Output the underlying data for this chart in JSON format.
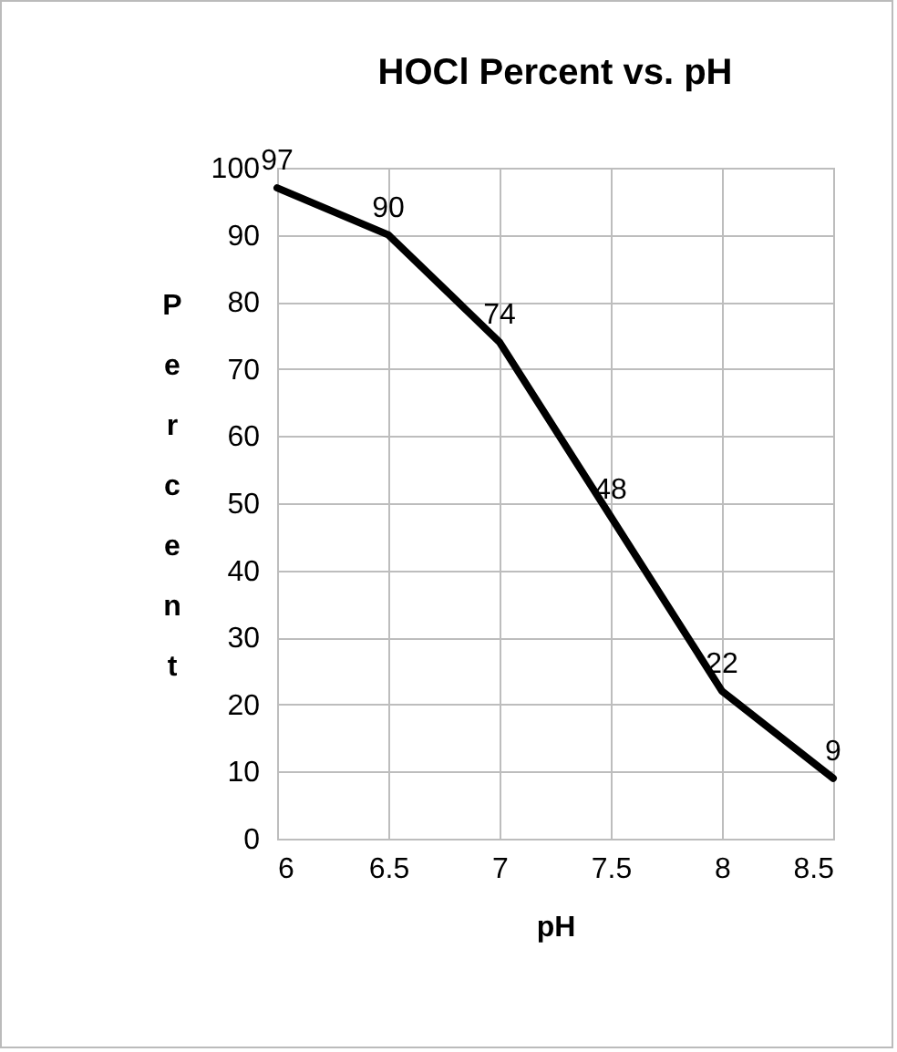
{
  "chart_data": {
    "type": "line",
    "title": "HOCl Percent vs. pH",
    "xlabel": "pH",
    "ylabel": "Percent",
    "x": [
      6,
      6.5,
      7,
      7.5,
      8,
      8.5
    ],
    "series": [
      {
        "color": "#000000",
        "values": [
          97,
          90,
          74,
          48,
          22,
          9
        ]
      }
    ],
    "xlim": [
      6,
      8.5
    ],
    "xticks": [
      6,
      6.5,
      7,
      7.5,
      8,
      8.5
    ],
    "ylim": [
      0,
      100
    ],
    "yticks": [
      0,
      10,
      20,
      30,
      40,
      50,
      60,
      70,
      80,
      90,
      100
    ],
    "grid": true,
    "data_labels": true,
    "marker": "none",
    "line_style": "solid"
  }
}
